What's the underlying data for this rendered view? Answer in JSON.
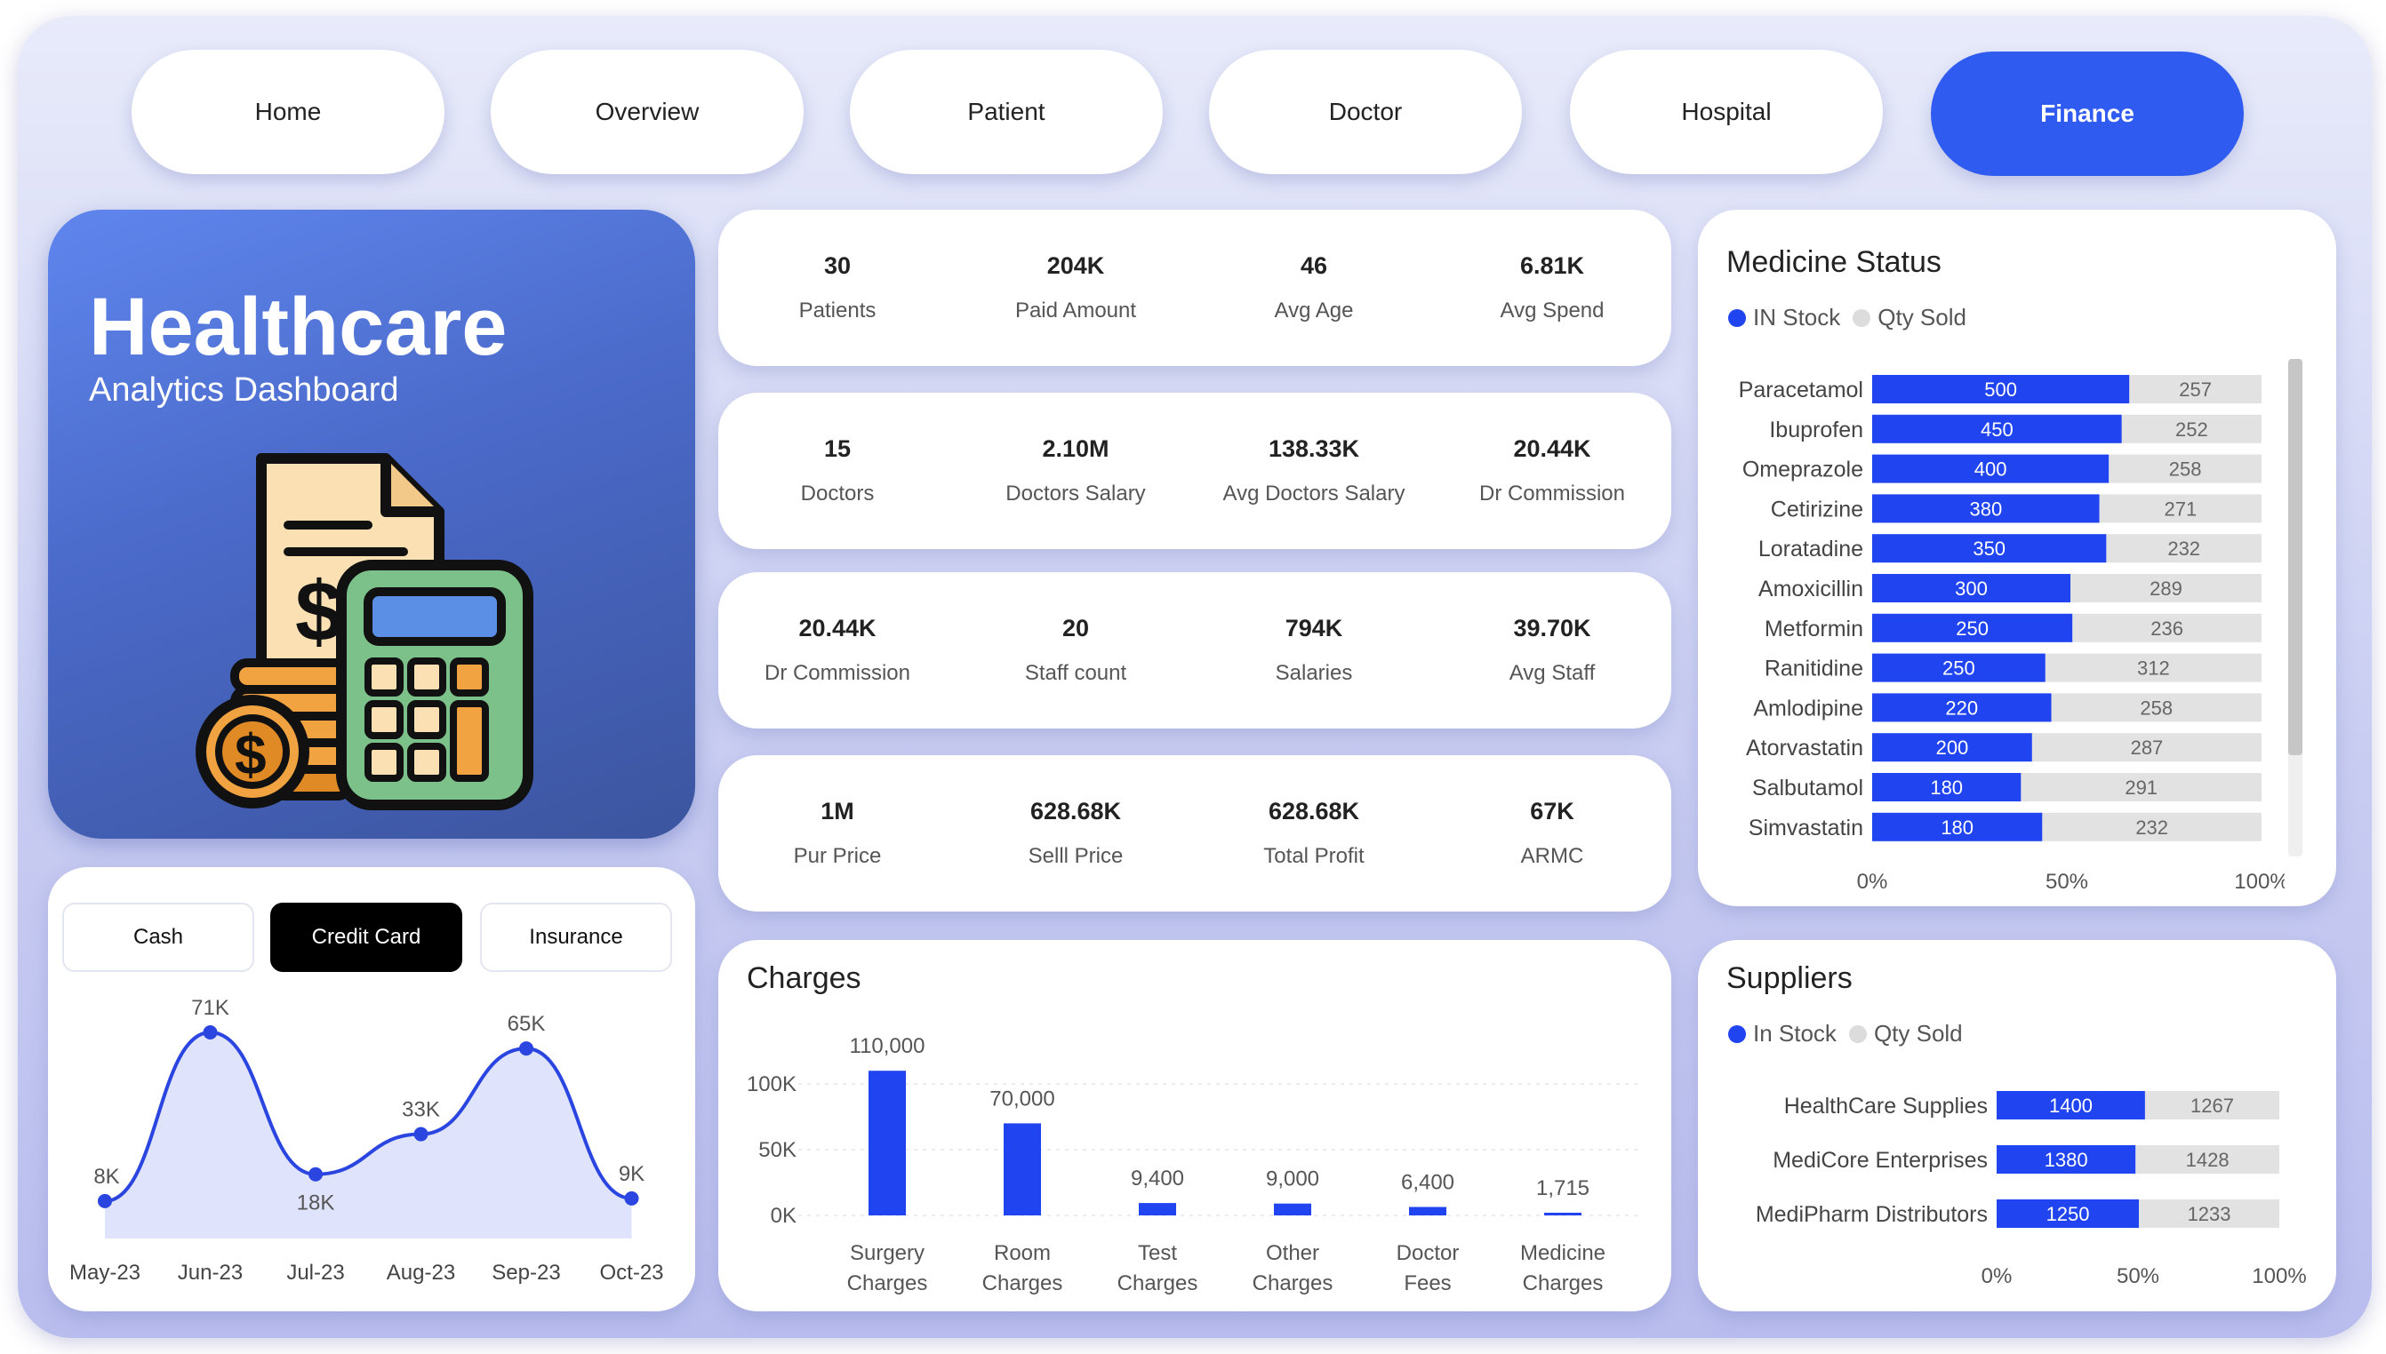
{
  "nav": [
    {
      "label": "Home"
    },
    {
      "label": "Overview"
    },
    {
      "label": "Patient"
    },
    {
      "label": "Doctor"
    },
    {
      "label": "Hospital"
    },
    {
      "label": "Finance",
      "active": true
    }
  ],
  "hero": {
    "title": "Healthcare",
    "subtitle": "Analytics Dashboard"
  },
  "kpi_cards": [
    [
      {
        "value": "30",
        "label": "Patients"
      },
      {
        "value": "204K",
        "label": "Paid Amount"
      },
      {
        "value": "46",
        "label": "Avg Age"
      },
      {
        "value": "6.81K",
        "label": "Avg Spend"
      }
    ],
    [
      {
        "value": "15",
        "label": "Doctors"
      },
      {
        "value": "2.10M",
        "label": "Doctors Salary"
      },
      {
        "value": "138.33K",
        "label": "Avg Doctors Salary"
      },
      {
        "value": "20.44K",
        "label": "Dr Commission"
      }
    ],
    [
      {
        "value": "20.44K",
        "label": "Dr Commission"
      },
      {
        "value": "20",
        "label": "Staff count"
      },
      {
        "value": "794K",
        "label": "Salaries"
      },
      {
        "value": "39.70K",
        "label": "Avg Staff"
      }
    ],
    [
      {
        "value": "1M",
        "label": "Pur Price"
      },
      {
        "value": "628.68K",
        "label": "Selll Price"
      },
      {
        "value": "628.68K",
        "label": "Total Profit"
      },
      {
        "value": "67K",
        "label": "ARMC"
      }
    ]
  ],
  "payment": {
    "options": [
      "Cash",
      "Credit Card",
      "Insurance"
    ],
    "selected": "Credit Card"
  },
  "colors": {
    "accent": "#2f5bf0",
    "bar": "#1f44f0",
    "bar_grey": "#e2e2e2",
    "line": "#2a45e0"
  },
  "chart_data": [
    {
      "id": "payment_trend",
      "type": "area",
      "categories": [
        "May-23",
        "Jun-23",
        "Jul-23",
        "Aug-23",
        "Sep-23",
        "Oct-23"
      ],
      "values": [
        8000,
        71000,
        18000,
        33000,
        65000,
        9000
      ],
      "data_labels": [
        "8K",
        "71K",
        "18K",
        "33K",
        "65K",
        "9K"
      ]
    },
    {
      "id": "charges",
      "type": "bar",
      "title": "Charges",
      "categories": [
        "Surgery Charges",
        "Room Charges",
        "Test Charges",
        "Other Charges",
        "Doctor Fees",
        "Medicine Charges"
      ],
      "values": [
        110000,
        70000,
        9400,
        9000,
        6400,
        1715
      ],
      "data_labels": [
        "110,000",
        "70,000",
        "9,400",
        "9,000",
        "6,400",
        "1,715"
      ],
      "yticks": [
        "0K",
        "50K",
        "100K"
      ],
      "ylim": [
        0,
        110000
      ]
    },
    {
      "id": "medicine_status",
      "type": "bar",
      "orientation": "horizontal",
      "stacked": "100%",
      "title": "Medicine Status",
      "legend": [
        "IN Stock",
        "Qty Sold"
      ],
      "categories": [
        "Paracetamol",
        "Ibuprofen",
        "Omeprazole",
        "Cetirizine",
        "Loratadine",
        "Amoxicillin",
        "Metformin",
        "Ranitidine",
        "Amlodipine",
        "Atorvastatin",
        "Salbutamol",
        "Simvastatin"
      ],
      "series": [
        {
          "name": "IN Stock",
          "values": [
            500,
            450,
            400,
            380,
            350,
            300,
            250,
            250,
            220,
            200,
            180,
            180
          ]
        },
        {
          "name": "Qty Sold",
          "values": [
            257,
            252,
            258,
            271,
            232,
            289,
            236,
            312,
            258,
            287,
            291,
            232
          ]
        }
      ],
      "xticks": [
        "0%",
        "50%",
        "100%"
      ]
    },
    {
      "id": "suppliers",
      "type": "bar",
      "orientation": "horizontal",
      "stacked": "100%",
      "title": "Suppliers",
      "legend": [
        "In Stock",
        "Qty Sold"
      ],
      "categories": [
        "HealthCare Supplies",
        "MediCore Enterprises",
        "MediPharm Distributors"
      ],
      "series": [
        {
          "name": "In Stock",
          "values": [
            1400,
            1380,
            1250
          ]
        },
        {
          "name": "Qty Sold",
          "values": [
            1267,
            1428,
            1233
          ]
        }
      ],
      "xticks": [
        "0%",
        "50%",
        "100%"
      ]
    }
  ]
}
